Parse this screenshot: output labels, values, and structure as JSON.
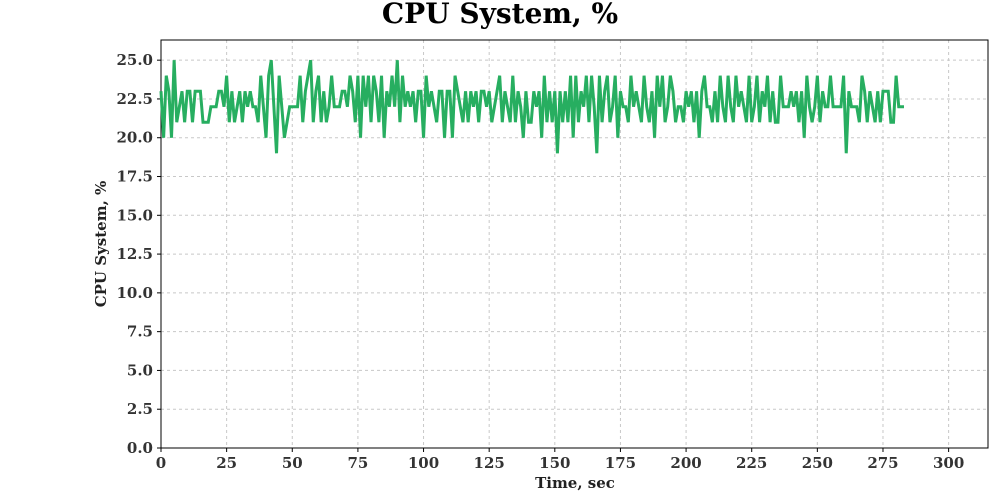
{
  "chart_data": {
    "type": "line",
    "title": "CPU System, %",
    "xlabel": "Time, sec",
    "ylabel": "CPU System, %",
    "xlim": [
      0,
      315
    ],
    "ylim": [
      0,
      26.3
    ],
    "x_ticks": [
      0,
      25,
      50,
      75,
      100,
      125,
      150,
      175,
      200,
      225,
      250,
      275,
      300
    ],
    "y_ticks": [
      "0.0",
      "2.5",
      "5.0",
      "7.5",
      "10.0",
      "12.5",
      "15.0",
      "17.5",
      "20.0",
      "22.5",
      "25.0"
    ],
    "grid": true,
    "color": "#27ae60",
    "series": [
      {
        "x_start": 0,
        "x_step": 1,
        "values": [
          23,
          20,
          24,
          23,
          20,
          25,
          21,
          22,
          23,
          21,
          23,
          23,
          21,
          23,
          23,
          23,
          21,
          21,
          21,
          22,
          22,
          22,
          23,
          23,
          22,
          24,
          21,
          23,
          21,
          22,
          23,
          21,
          23,
          22,
          23,
          22,
          22,
          21,
          24,
          22,
          20,
          24,
          25,
          22,
          19,
          24,
          22,
          20,
          21,
          22,
          22,
          22,
          22,
          24,
          21,
          23,
          24,
          25,
          21,
          23,
          24,
          21,
          23,
          21,
          22,
          24,
          22,
          22,
          22,
          23,
          23,
          22,
          24,
          23,
          21,
          24,
          20,
          24,
          22,
          24,
          21,
          24,
          23,
          21,
          24,
          20,
          23,
          22,
          24,
          22,
          25,
          21,
          24,
          22,
          23,
          22,
          23,
          21,
          23,
          23,
          20,
          24,
          22,
          23,
          22,
          21,
          23,
          23,
          20,
          23,
          23,
          20,
          24,
          23,
          22,
          21,
          23,
          21,
          23,
          22,
          23,
          21,
          23,
          23,
          22,
          23,
          21,
          22,
          23,
          24,
          21,
          23,
          22,
          21,
          24,
          21,
          23,
          22,
          20,
          23,
          21,
          21,
          23,
          22,
          23,
          20,
          24,
          21,
          23,
          21,
          23,
          19,
          23,
          21,
          23,
          21,
          24,
          20,
          24,
          21,
          23,
          22,
          24,
          21,
          24,
          22,
          19,
          24,
          21,
          23,
          24,
          21,
          22,
          24,
          20,
          23,
          22,
          22,
          21,
          24,
          22,
          23,
          22,
          21,
          24,
          22,
          21,
          23,
          20,
          24,
          22,
          24,
          21,
          22,
          24,
          23,
          21,
          22,
          22,
          21,
          23,
          22,
          23,
          21,
          23,
          20,
          23,
          24,
          22,
          22,
          21,
          23,
          21,
          24,
          22,
          21,
          24,
          22,
          21,
          24,
          22,
          23,
          22,
          21,
          24,
          21,
          22,
          24,
          21,
          23,
          22,
          24,
          21,
          23,
          21,
          21,
          24,
          22,
          22,
          22,
          23,
          22,
          23,
          21,
          23,
          20,
          24,
          22,
          21,
          22,
          24,
          21,
          23,
          22,
          22,
          24,
          22,
          22,
          22,
          22,
          24,
          19,
          23,
          22,
          22,
          22,
          21,
          24,
          23,
          21,
          23,
          22,
          21,
          23,
          21,
          23,
          23,
          23,
          21,
          21,
          24,
          22,
          22,
          22
        ]
      }
    ]
  }
}
